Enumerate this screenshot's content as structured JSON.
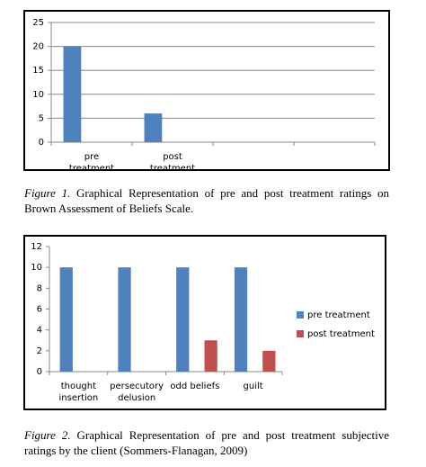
{
  "chart_data": [
    {
      "type": "bar",
      "categories": [
        "pre treatment",
        "post treatment",
        null,
        null
      ],
      "values": [
        20,
        6,
        null,
        null
      ],
      "color": "#4f81bd",
      "ylim": [
        0,
        25
      ],
      "yticks": [
        0,
        5,
        10,
        15,
        20,
        25
      ],
      "grid": true,
      "caption_label": "Figure 1.",
      "caption": "Graphical Representation of pre and post treatment ratings on Brown Assessment of Beliefs Scale."
    },
    {
      "type": "bar",
      "categories": [
        "thought insertion",
        "persecutory delusion",
        "odd beliefs",
        "guilt"
      ],
      "series": [
        {
          "name": "pre treatment",
          "color": "#4f81bd",
          "values": [
            10,
            10,
            10,
            10
          ]
        },
        {
          "name": "post treatment",
          "color": "#c0504d",
          "values": [
            0,
            0,
            3,
            2
          ]
        }
      ],
      "ylim": [
        0,
        12
      ],
      "yticks": [
        0,
        2,
        4,
        6,
        8,
        10,
        12
      ],
      "grid": false,
      "legend": "right",
      "caption_label": "Figure 2.",
      "caption": "Graphical Representation of pre and post treatment subjective ratings by the client (Sommers-Flanagan, 2009)"
    }
  ]
}
